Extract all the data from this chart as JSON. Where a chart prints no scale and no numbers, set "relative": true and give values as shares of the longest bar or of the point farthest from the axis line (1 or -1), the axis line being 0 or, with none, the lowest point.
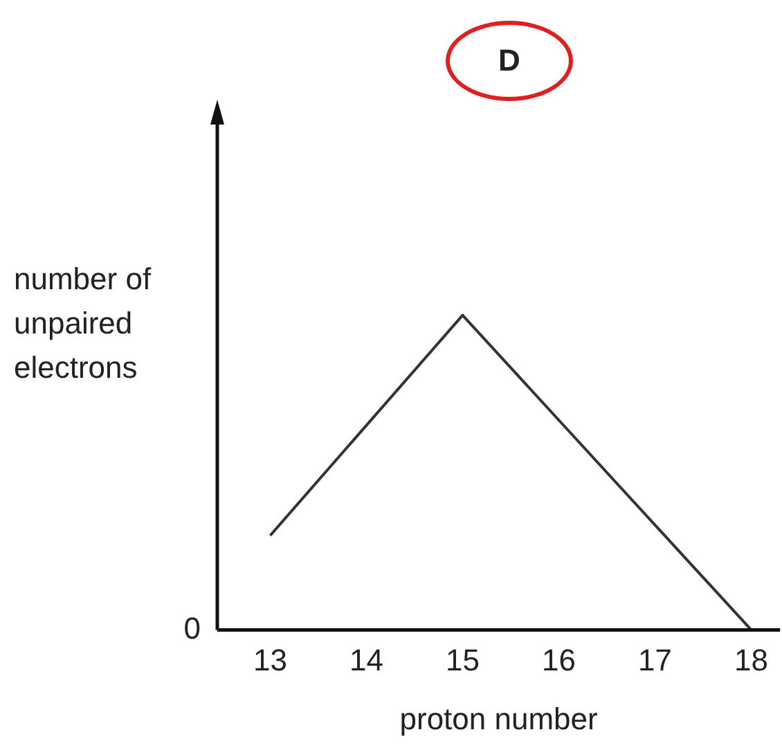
{
  "chart_data": {
    "type": "line",
    "relative": true,
    "x": [
      13,
      15,
      18
    ],
    "values": [
      0.3,
      1,
      0
    ],
    "color": "#333333",
    "xlim": [
      12.45,
      18.3
    ],
    "xticks": [
      13,
      14,
      15,
      16,
      17,
      18
    ],
    "xlabel": "proton number",
    "ylabel": "number of unpaired electrons",
    "annotations": [
      "D",
      "0"
    ],
    "grid": false,
    "legend": false,
    "marker": "none",
    "line_style": "solid"
  }
}
